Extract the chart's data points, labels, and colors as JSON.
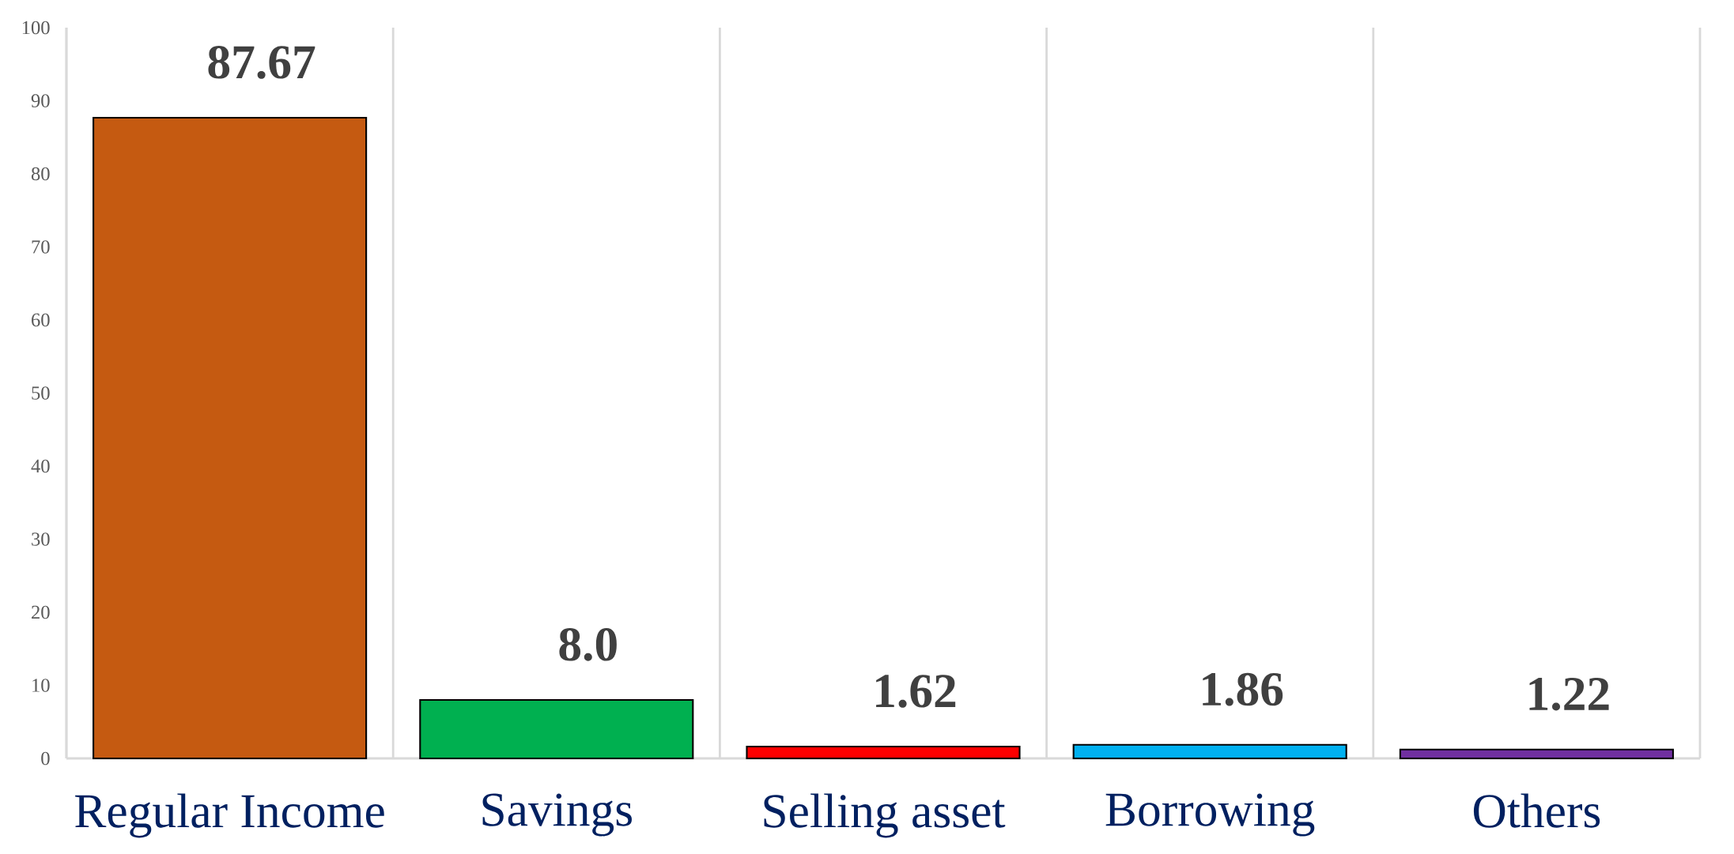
{
  "chart_data": {
    "type": "bar",
    "categories": [
      "Regular Income",
      "Savings",
      "Selling asset",
      "Borrowing",
      "Others"
    ],
    "values": [
      87.67,
      8.0,
      1.62,
      1.86,
      1.22
    ],
    "colors": [
      "#c55a11",
      "#00b050",
      "#ff0000",
      "#00b0f0",
      "#7030a0"
    ],
    "value_labels": [
      "87.67",
      "8.0",
      "1.62",
      "1.86",
      "1.22"
    ],
    "ylim": [
      0,
      100
    ],
    "yticks": [
      0,
      10,
      20,
      30,
      40,
      50,
      60,
      70,
      80,
      90,
      100
    ],
    "grid": "x"
  }
}
